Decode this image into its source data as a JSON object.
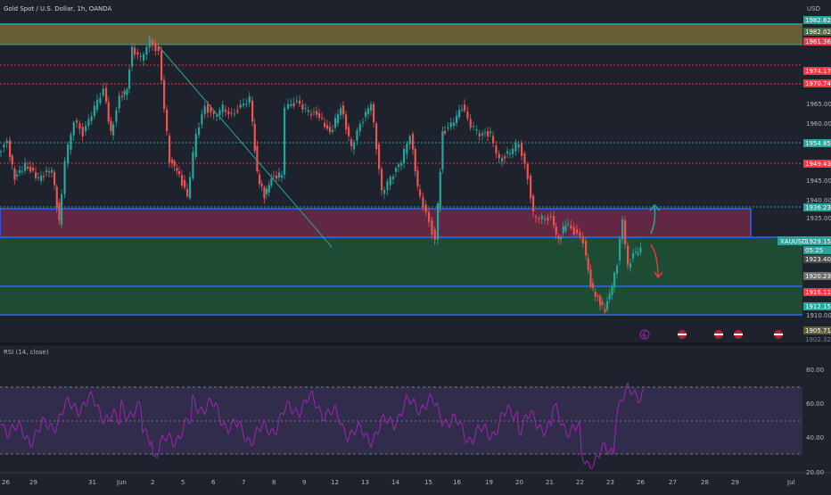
{
  "header": {
    "symbol_title": "Gold Spot / U.S. Dollar, 1h, OANDA",
    "currency": "USD"
  },
  "indicator": {
    "title": "RSI (14, close)"
  },
  "colors": {
    "background": "#1e222d",
    "bull_candle": "#26a69a",
    "bear_candle": "#ef5350",
    "rsi_line": "#9c27b0",
    "supply_zone": "#8e2b4f",
    "demand_zone": "#1e5a35",
    "top_zone": "#b8a33a",
    "blue_line": "#2962ff",
    "trend_line": "#26a69a",
    "red_dotted": "#f23645",
    "teal_dotted": "#26a69a"
  },
  "price_axis": {
    "ticks": [
      "1965.000",
      "1960.000",
      "1945.000",
      "1940.000",
      "1935.000",
      "1910.000"
    ],
    "price_tags": [
      {
        "id": "p1",
        "text": "1982.624",
        "bg": "#26a69a"
      },
      {
        "id": "p2",
        "text": "1982.028",
        "bg": "#4d6a3d"
      },
      {
        "id": "p3",
        "text": "1981.361",
        "bg": "#f23645"
      },
      {
        "id": "p4",
        "text": "1974.178",
        "bg": "#f23645"
      },
      {
        "id": "p5",
        "text": "1970.748",
        "bg": "#f23645"
      },
      {
        "id": "p6",
        "text": "1954.852",
        "bg": "#26a69a"
      },
      {
        "id": "p7",
        "text": "1949.433",
        "bg": "#f23645"
      },
      {
        "id": "p8",
        "text": "1936.239",
        "bg": "#26a69a"
      },
      {
        "id": "p9",
        "text": "XAUUSD",
        "bg": "#26a69a"
      },
      {
        "id": "p10",
        "text": "1929.150",
        "bg": "#26a69a"
      },
      {
        "id": "p11",
        "text": "05:25",
        "bg": "#26a69a"
      },
      {
        "id": "p12",
        "text": "1923.402",
        "bg": "#4a4a4a"
      },
      {
        "id": "p13",
        "text": "1920.232",
        "bg": "#6e6e6e"
      },
      {
        "id": "p14",
        "text": "1916.110",
        "bg": "#f23645"
      },
      {
        "id": "p15",
        "text": "1912.158",
        "bg": "#26a69a"
      },
      {
        "id": "p16",
        "text": "1905.718",
        "bg": "#5d5d3a"
      },
      {
        "id": "p17",
        "text": "1902.328",
        "bg": "#2a2e39"
      }
    ]
  },
  "rsi_axis": {
    "ticks": [
      "80.00",
      "60.00",
      "40.00",
      "20.00"
    ]
  },
  "time_axis": {
    "labels": [
      "26",
      "29",
      "31",
      "Jun",
      "2",
      "5",
      "6",
      "7",
      "8",
      "9",
      "12",
      "13",
      "14",
      "15",
      "16",
      "19",
      "20",
      "21",
      "22",
      "23",
      "26",
      "27",
      "28",
      "29",
      "Jul"
    ]
  },
  "chart_data": {
    "type": "candlestick",
    "symbol": "XAUUSD",
    "timeframe": "1h",
    "last_price": 1929.15,
    "ylim": [
      1902,
      1987
    ],
    "levels": [
      1982.624,
      1982.028,
      1981.361,
      1974.178,
      1970.748,
      1954.852,
      1949.433,
      1936.239,
      1923.402,
      1920.232,
      1916.11,
      1912.158
    ],
    "rsi": {
      "period": 14,
      "source": "close",
      "levels": [
        70,
        50,
        30
      ],
      "ylim": [
        20,
        85
      ]
    }
  }
}
